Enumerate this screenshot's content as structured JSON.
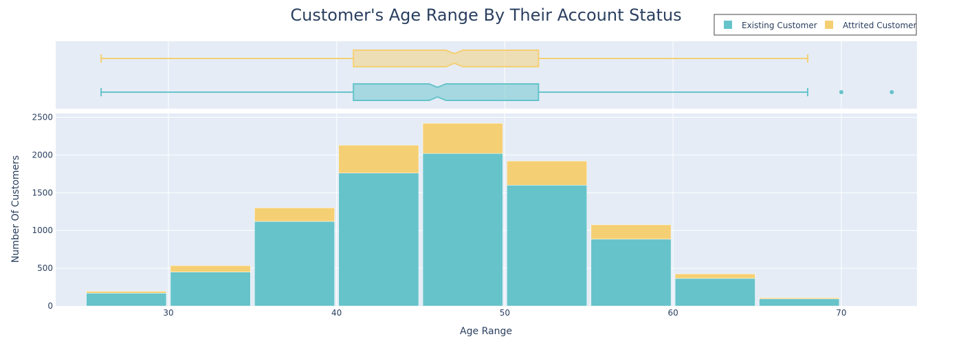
{
  "chart_data": {
    "type": "bar",
    "title": "Customer's Age Range By Their Account Status",
    "xlabel": "Age Range",
    "ylabel": "Number Of Customers",
    "barmode": "stack",
    "grid": true,
    "legend_position": "top-right",
    "bin_starts": [
      25,
      30,
      35,
      40,
      45,
      50,
      55,
      60,
      65,
      70
    ],
    "bin_width": 5,
    "xlim": [
      23.3,
      74.5
    ],
    "ylim": [
      0,
      2550
    ],
    "x_ticks": [
      30,
      40,
      50,
      60,
      70
    ],
    "y_ticks": [
      0,
      500,
      1000,
      1500,
      2000,
      2500
    ],
    "series": [
      {
        "name": "Existing Customer",
        "color": "#66c3ca",
        "values": [
          170,
          450,
          1120,
          1760,
          2020,
          1600,
          885,
          365,
          95,
          0
        ],
        "box": {
          "min": 26,
          "q1": 41,
          "median": 46,
          "q3": 52,
          "max": 68,
          "notch_low": 45.5,
          "notch_high": 46.5,
          "outliers": [
            70,
            73
          ]
        }
      },
      {
        "name": "Attrited Customer",
        "color": "#f5cf73",
        "values": [
          25,
          85,
          180,
          370,
          400,
          320,
          190,
          60,
          15,
          0
        ],
        "box": {
          "min": 26,
          "q1": 41,
          "median": 47,
          "q3": 52,
          "max": 68,
          "notch_low": 46.5,
          "notch_high": 47.5,
          "outliers": []
        }
      }
    ]
  }
}
